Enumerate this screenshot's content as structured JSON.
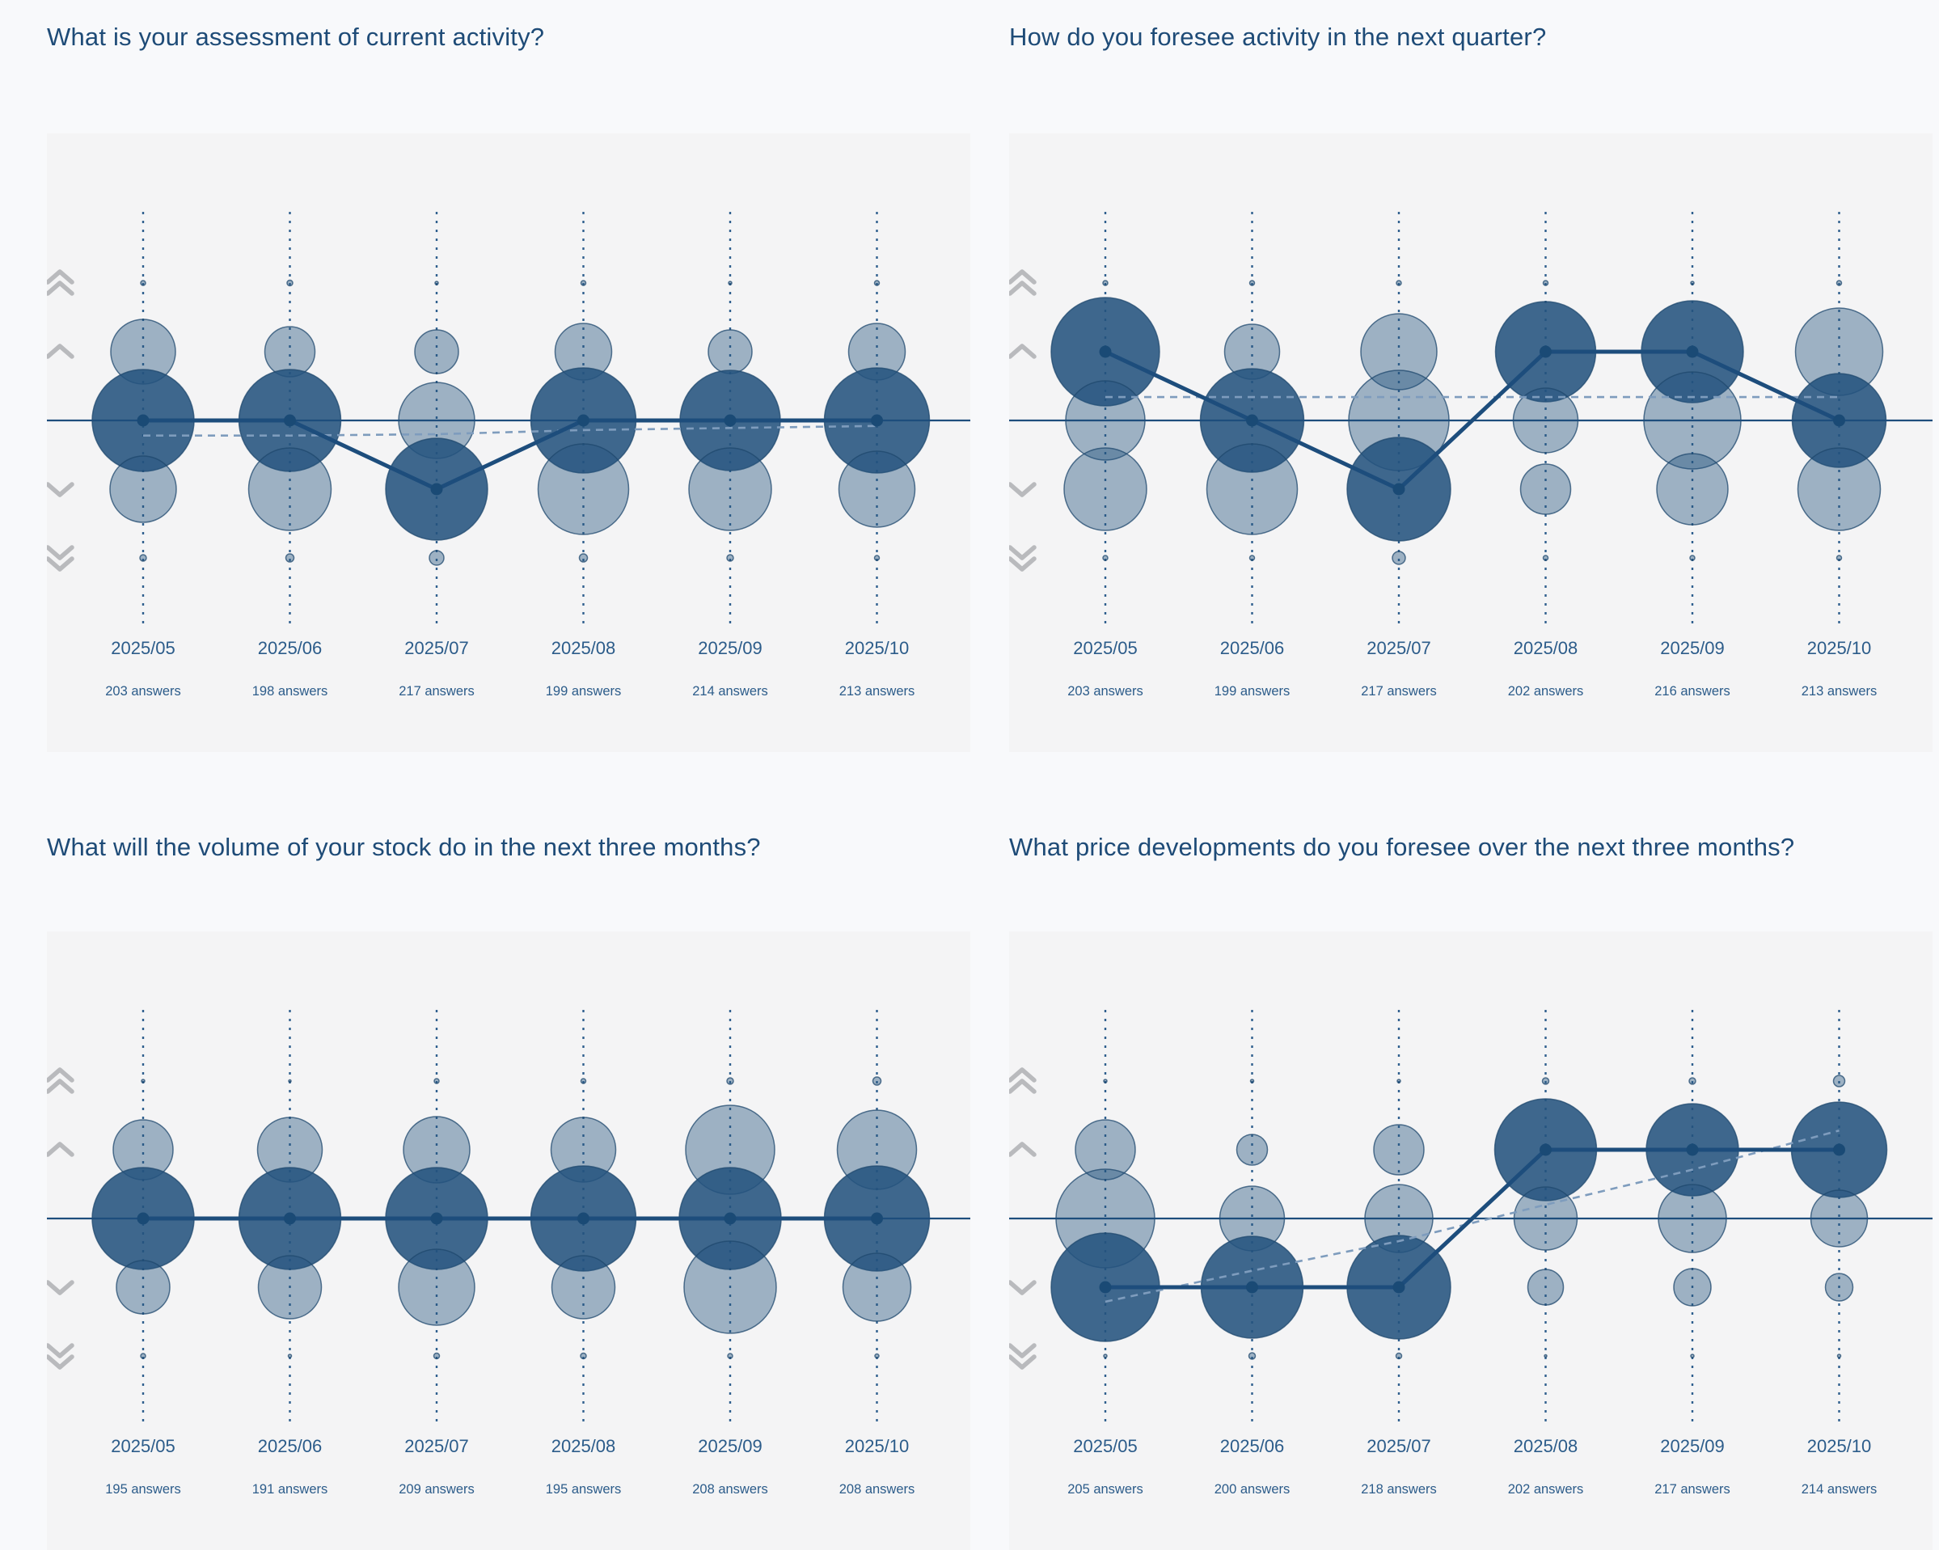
{
  "page": {
    "background": "#f8f9fb",
    "panel_background": "#f4f4f5"
  },
  "colors": {
    "title": "#1e4b77",
    "axis_label": "#2c5c8a",
    "bubble_dark_fill": "rgba(36,83,126,0.88)",
    "bubble_light_fill": "rgba(36,83,126,0.42)",
    "bubble_stroke": "rgba(31,72,110,0.75)",
    "series_line": "#1d4d7c",
    "baseline": "#1d4d7c",
    "dashed_line": "#7e9cbd",
    "dotted_gridline": "#2f5f8e",
    "vertex_dot": "#1a4a75",
    "chevron_icon": "#b9babd"
  },
  "labels": {
    "answers_suffix": "answers"
  },
  "row_legend": [
    "much higher",
    "higher",
    "same",
    "lower",
    "much lower"
  ],
  "chart_data": [
    {
      "type": "bubble-timeline",
      "title": "What is your assessment of current activity?",
      "x": [
        "2025/05",
        "2025/06",
        "2025/07",
        "2025/08",
        "2025/09",
        "2025/10"
      ],
      "answers": [
        203,
        198,
        217,
        199,
        214,
        213
      ],
      "rows": [
        "much higher",
        "higher",
        "same",
        "lower",
        "much lower"
      ],
      "bubble_radii": [
        [
          3,
          40,
          63,
          41,
          4
        ],
        [
          3.5,
          31,
          63,
          51,
          5
        ],
        [
          2,
          27,
          47,
          63,
          9
        ],
        [
          3,
          35,
          65,
          56,
          5
        ],
        [
          2,
          27,
          62,
          51,
          4
        ],
        [
          3,
          35,
          65,
          47,
          3
        ]
      ],
      "dark_row": [
        2,
        2,
        3,
        2,
        2,
        2
      ],
      "solid_line_row": [
        2,
        2,
        3,
        2,
        2,
        2
      ],
      "dashed_line_row": [
        2.22,
        2.22,
        2.2,
        2.14,
        2.11,
        2.08
      ]
    },
    {
      "type": "bubble-timeline",
      "title": "How do you foresee activity in the next quarter?",
      "x": [
        "2025/05",
        "2025/06",
        "2025/07",
        "2025/08",
        "2025/09",
        "2025/10"
      ],
      "answers": [
        203,
        199,
        217,
        202,
        216,
        213
      ],
      "rows": [
        "much higher",
        "higher",
        "same",
        "lower",
        "much lower"
      ],
      "bubble_radii": [
        [
          3,
          67,
          49,
          51,
          3
        ],
        [
          3,
          34,
          64,
          56,
          3
        ],
        [
          3,
          47,
          62,
          64,
          8
        ],
        [
          3,
          62,
          40,
          31,
          3
        ],
        [
          2,
          63,
          60,
          44,
          3
        ],
        [
          3,
          54,
          58,
          51,
          3
        ]
      ],
      "dark_row": [
        1,
        2,
        3,
        1,
        1,
        2
      ],
      "solid_line_row": [
        1,
        2,
        3,
        1,
        1,
        2
      ],
      "dashed_line_row": [
        1.66,
        1.66,
        1.66,
        1.66,
        1.66,
        1.66
      ]
    },
    {
      "type": "bubble-timeline",
      "title": "What will the volume of your stock do in the next three months?",
      "x": [
        "2025/05",
        "2025/06",
        "2025/07",
        "2025/08",
        "2025/09",
        "2025/10"
      ],
      "answers": [
        195,
        191,
        209,
        195,
        208,
        208
      ],
      "rows": [
        "much higher",
        "higher",
        "same",
        "lower",
        "much lower"
      ],
      "bubble_radii": [
        [
          2,
          37,
          63,
          33,
          3
        ],
        [
          1.5,
          40,
          63,
          39,
          2
        ],
        [
          3,
          41,
          63,
          47,
          3.5
        ],
        [
          3,
          40,
          65,
          39,
          3.5
        ],
        [
          4,
          55,
          63,
          57,
          3
        ],
        [
          5,
          49,
          65,
          42,
          2.5
        ]
      ],
      "dark_row": [
        2,
        2,
        2,
        2,
        2,
        2
      ],
      "solid_line_row": [
        2,
        2,
        2,
        2,
        2,
        2
      ],
      "dashed_line_row": null
    },
    {
      "type": "bubble-timeline",
      "title": "What price developments do you foresee over the next three months?",
      "x": [
        "2025/05",
        "2025/06",
        "2025/07",
        "2025/08",
        "2025/09",
        "2025/10"
      ],
      "answers": [
        205,
        200,
        218,
        202,
        217,
        214
      ],
      "rows": [
        "much higher",
        "higher",
        "same",
        "lower",
        "much lower"
      ],
      "bubble_radii": [
        [
          2,
          37,
          61,
          67,
          2
        ],
        [
          2,
          19,
          40,
          63,
          4
        ],
        [
          2,
          31,
          42,
          64,
          3.5
        ],
        [
          4,
          63,
          39,
          22,
          1.5
        ],
        [
          4,
          57,
          42,
          23,
          2
        ],
        [
          7,
          59,
          35,
          17,
          2
        ]
      ],
      "dark_row": [
        3,
        3,
        3,
        1,
        1,
        1
      ],
      "solid_line_row": [
        3,
        3,
        3,
        1,
        1,
        1
      ],
      "dashed_line_row": [
        3.21,
        2.76,
        2.33,
        1.8,
        1.29,
        0.72
      ]
    }
  ]
}
